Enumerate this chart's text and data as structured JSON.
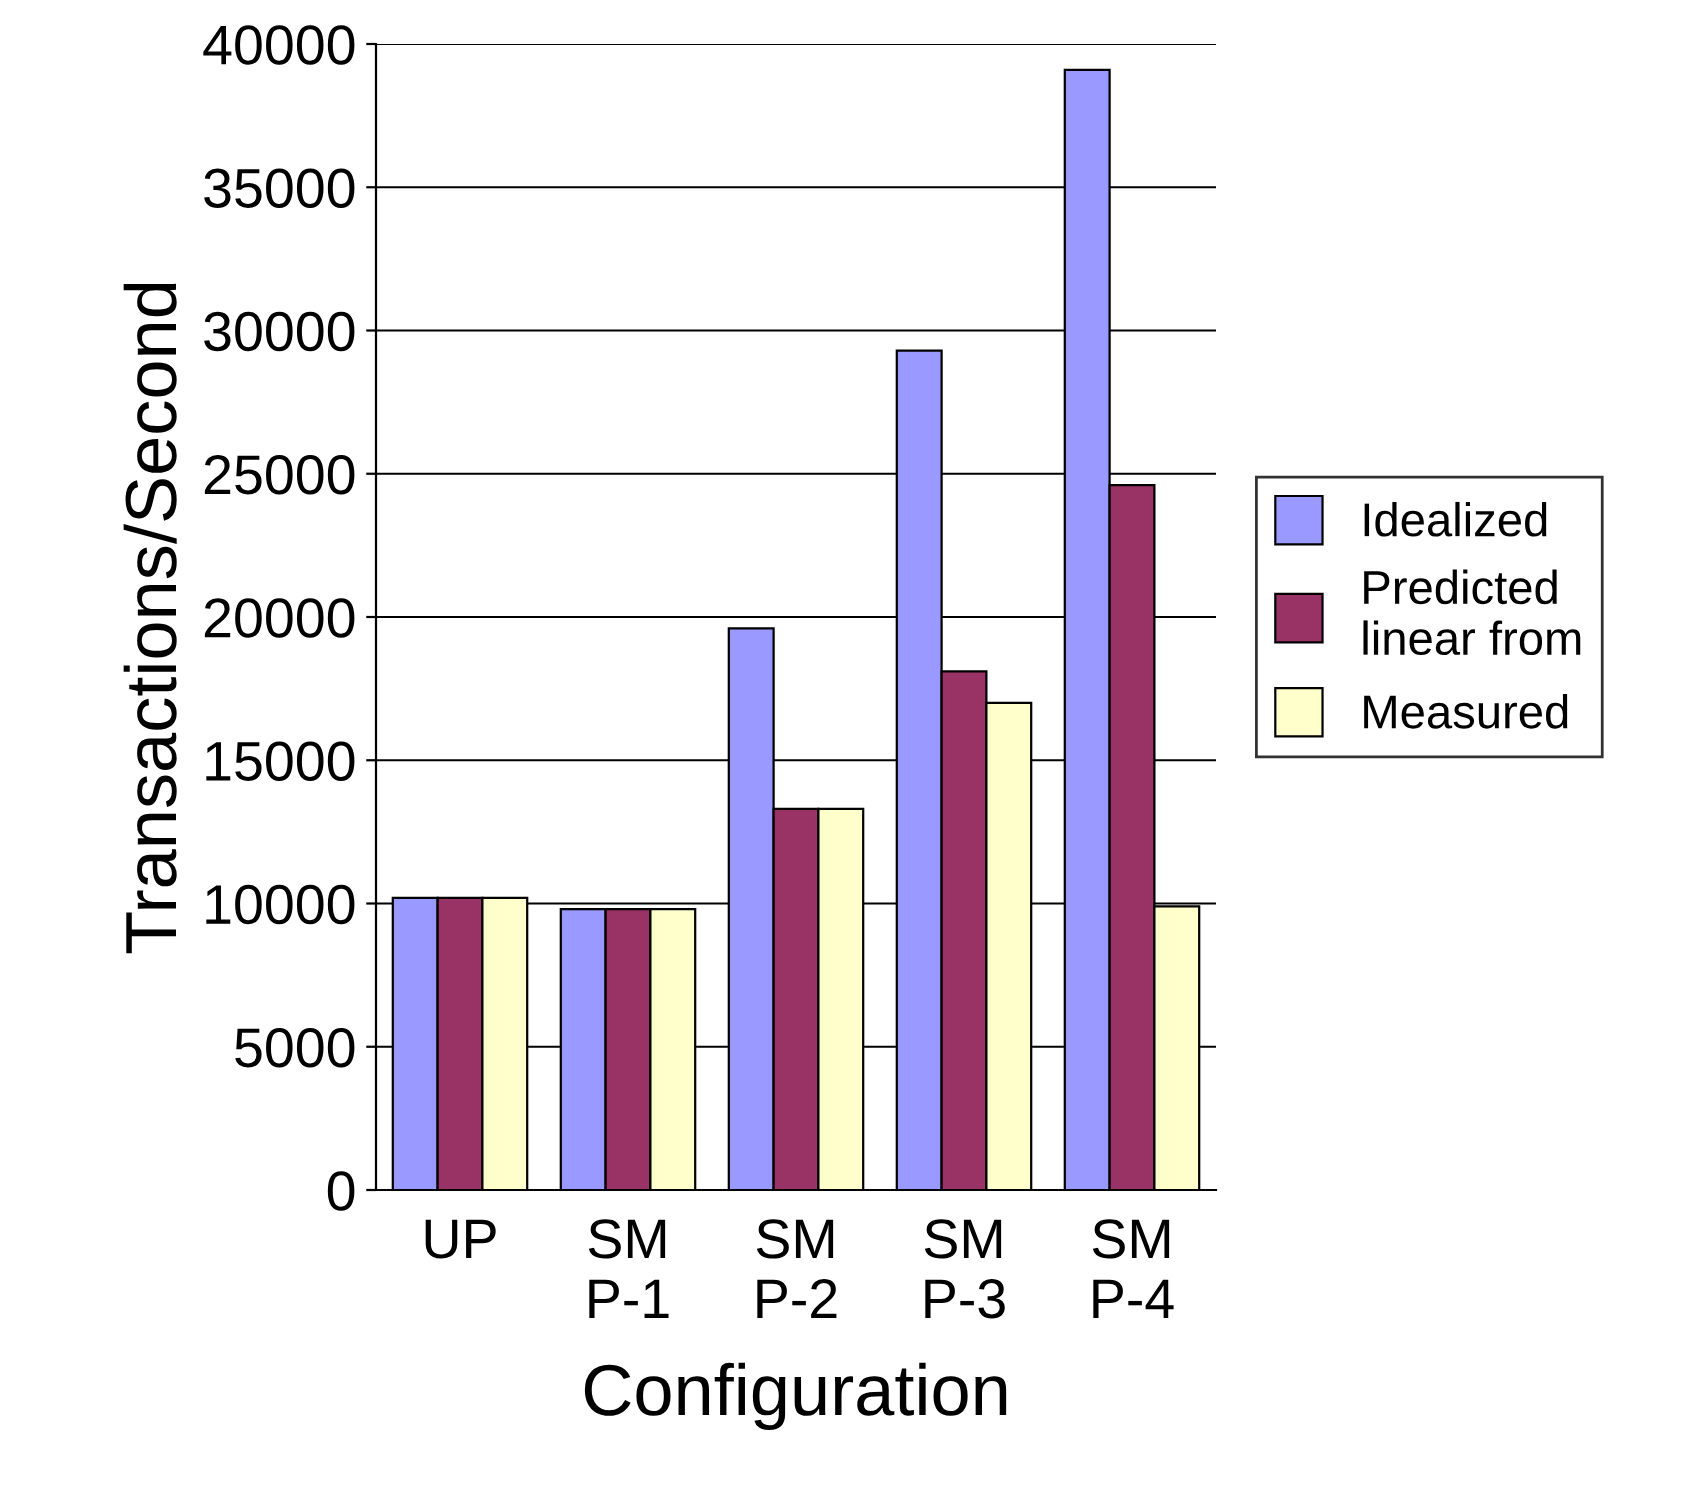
{
  "chart_data": {
    "type": "bar",
    "xlabel": "Configuration",
    "ylabel": "Transactions/Second",
    "categories": [
      "UP",
      "SM\nP-1",
      "SM\nP-2",
      "SM\nP-3",
      "SM\nP-4"
    ],
    "series": [
      {
        "name": "Idealized",
        "color": "#9999ff",
        "values": [
          10200,
          9800,
          19600,
          29300,
          39100
        ]
      },
      {
        "name": "Predicted\nlinear from",
        "color": "#993366",
        "values": [
          10200,
          9800,
          13300,
          18100,
          24600
        ]
      },
      {
        "name": "Measured",
        "color": "#ffffcc",
        "values": [
          10200,
          9800,
          13300,
          17000,
          9900
        ]
      }
    ],
    "ylim": [
      0,
      40000
    ],
    "yticks": [
      0,
      5000,
      10000,
      15000,
      20000,
      25000,
      30000,
      35000,
      40000
    ],
    "grid": "y",
    "legend": "right"
  }
}
